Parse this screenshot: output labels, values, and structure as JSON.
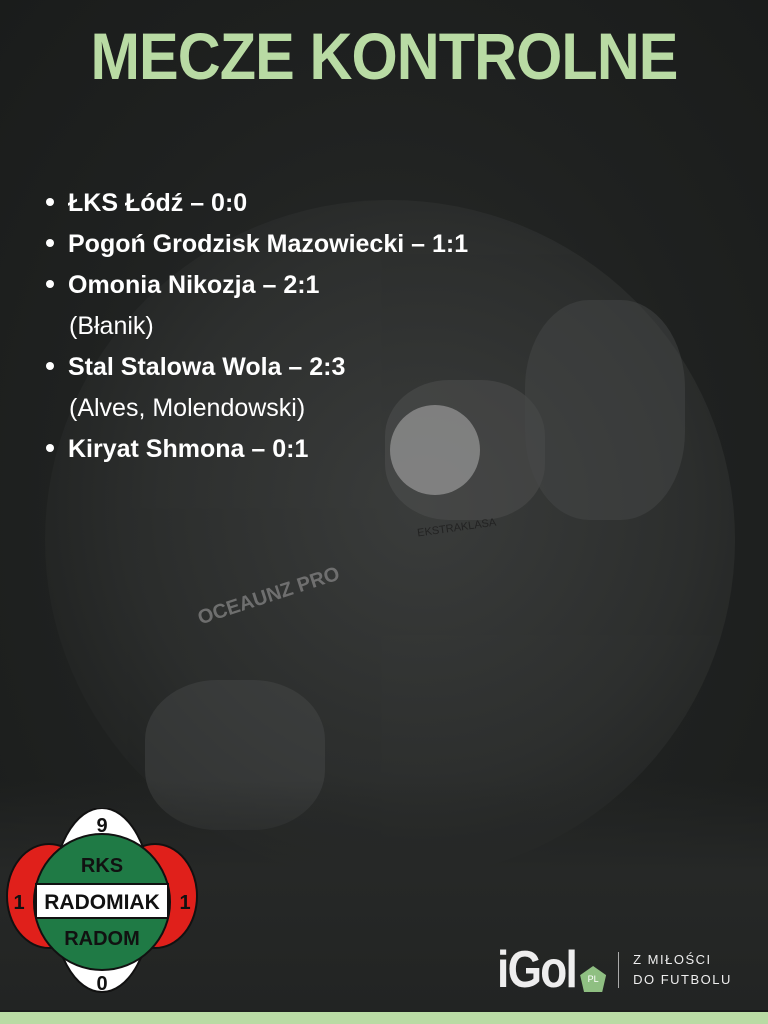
{
  "title": "MECZE KONTROLNE",
  "matches": [
    {
      "text": "ŁKS Łódź – 0:0",
      "scorers": ""
    },
    {
      "text": "Pogoń Grodzisk Mazowiecki – 1:1",
      "scorers": ""
    },
    {
      "text": "Omonia Nikozja – 2:1",
      "scorers": "(Błanik)"
    },
    {
      "text": "Stal Stalowa Wola – 2:3",
      "scorers": "(Alves, Molendowski)"
    },
    {
      "text": "Kiryat Shmona – 0:1",
      "scorers": ""
    }
  ],
  "crest": {
    "top": "9",
    "left": "1",
    "right": "1",
    "bottom": "0",
    "line1": "RKS",
    "line2": "RADOMIAK",
    "line3": "RADOM"
  },
  "ball_text": {
    "brand": "EKSTRAKLASA",
    "model": "OCEAUNZ PRO"
  },
  "brand": {
    "logo": "iGol",
    "badge": "PL",
    "tagline1": "Z MIŁOŚCI",
    "tagline2": "DO FUTBOLU"
  },
  "colors": {
    "accent": "#b9dba4",
    "background": "#1d1f1e",
    "crest_green": "#1f7a45",
    "crest_red": "#e0201b"
  }
}
